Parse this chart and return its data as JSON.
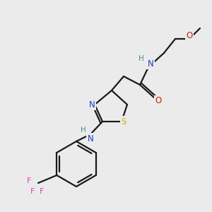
{
  "bg_color": "#ebebeb",
  "bond_color": "#1a1a1a",
  "atom_colors": {
    "N": "#1a3fc4",
    "N_NH": "#4a8888",
    "O": "#cc2200",
    "S": "#c8b400",
    "F": "#e040c0",
    "C": "#1a1a1a"
  },
  "figsize": [
    3.0,
    3.0
  ],
  "dpi": 100
}
